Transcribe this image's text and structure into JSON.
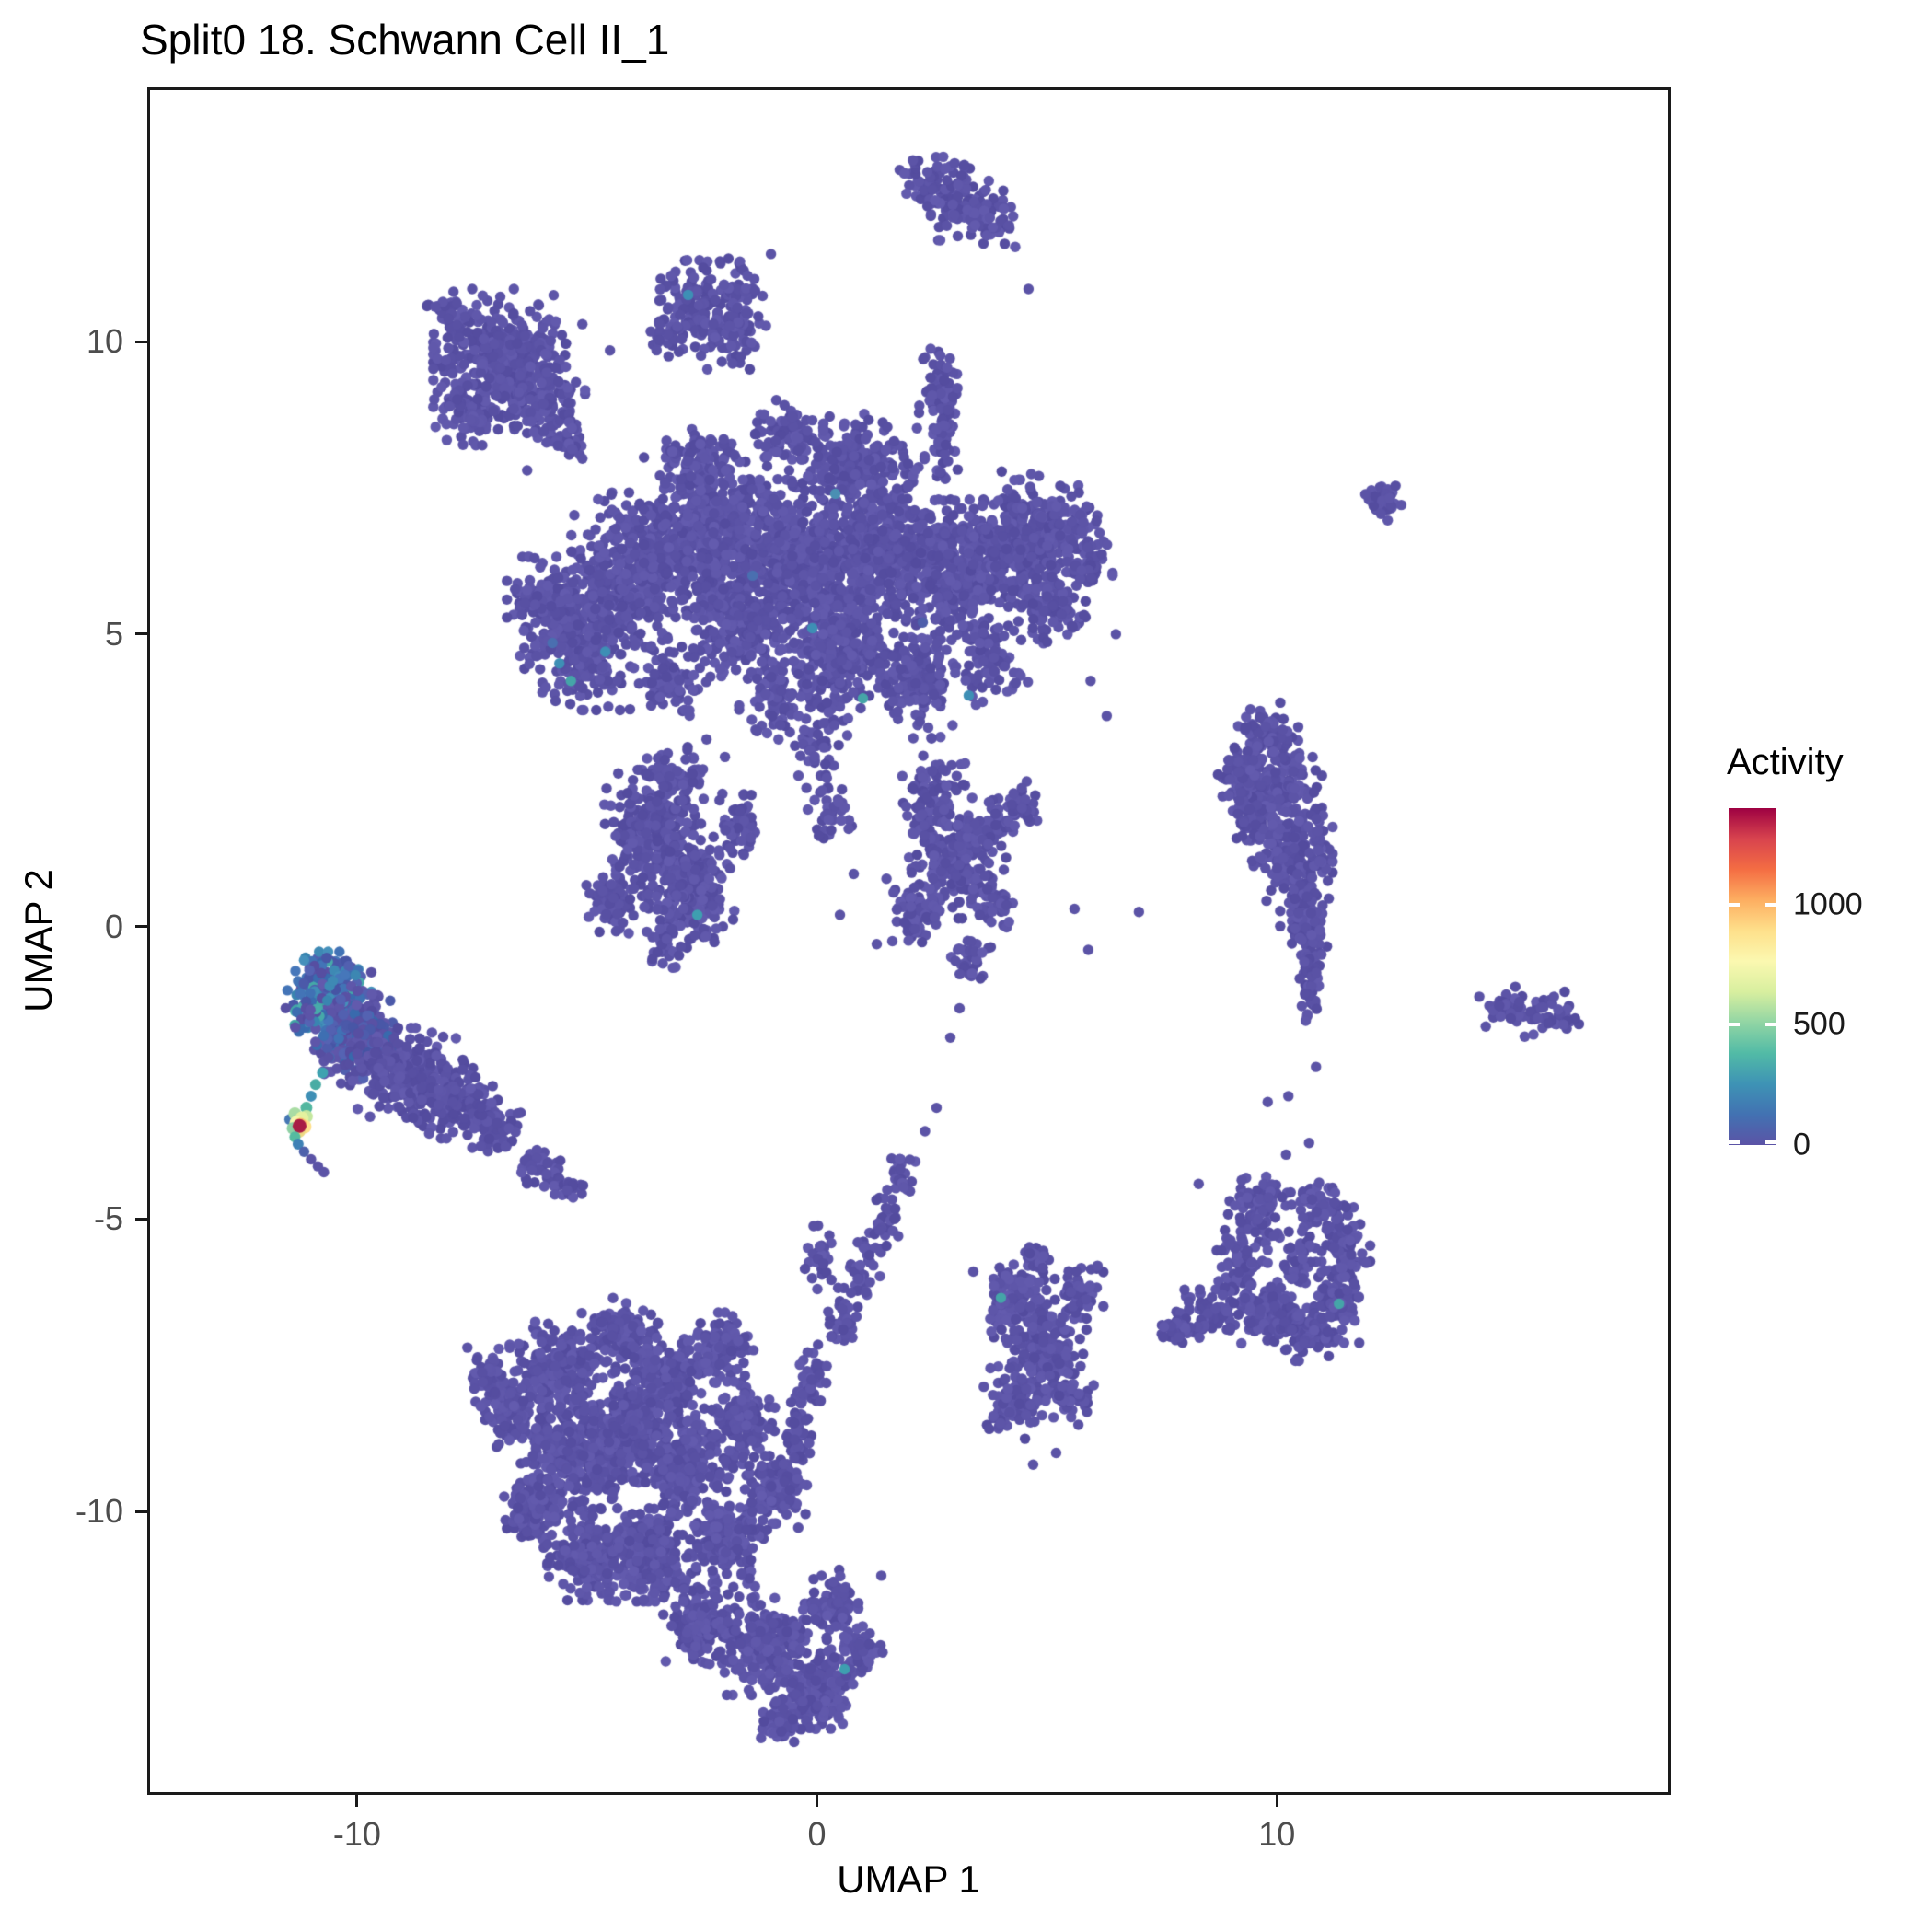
{
  "chart_data": {
    "type": "scatter",
    "title": "Split0 18. Schwann Cell II_1",
    "xlabel": "UMAP 1",
    "ylabel": "UMAP 2",
    "xlim": [
      -14.5,
      18.5
    ],
    "ylim": [
      -14.8,
      14.3
    ],
    "x_ticks": [
      -10,
      0,
      10
    ],
    "y_ticks": [
      -10,
      -5,
      0,
      5,
      10
    ],
    "colorbar": {
      "title": "Activity",
      "ticks": [
        0,
        500,
        1000
      ],
      "vmax": 1400,
      "colors": [
        "#5B53A6",
        "#4272B2",
        "#3E93B5",
        "#52BBA6",
        "#91D5A4",
        "#D8EF9F",
        "#FBF8B0",
        "#FEE08B",
        "#FDAE61",
        "#F46D43",
        "#D8434E",
        "#9E0142"
      ]
    },
    "base_point_color": "#5B53A6",
    "point_radius_px": 5.7,
    "seed": 11,
    "color_mixes": {
      "blue": [
        [
          "#4E5CAC",
          0.26
        ],
        [
          "#3E6FB2",
          0.26
        ],
        [
          "#3F8AB5",
          0.18
        ],
        [
          "#45A8A8",
          0.1
        ],
        [
          "#5B53A6",
          0.2
        ]
      ],
      "blue2": [
        [
          "#4E5CAC",
          0.3
        ],
        [
          "#3E6FB2",
          0.15
        ],
        [
          "#5B53A6",
          0.55
        ]
      ]
    },
    "clusters": [
      [
        2.5,
        12.7,
        0.3,
        0.25,
        60
      ],
      [
        3.2,
        12.35,
        0.35,
        0.28,
        80
      ],
      [
        3.8,
        12.1,
        0.22,
        0.2,
        35
      ],
      [
        -2.7,
        10.6,
        0.38,
        0.33,
        110
      ],
      [
        -1.9,
        10.2,
        0.33,
        0.28,
        85
      ],
      [
        -1.6,
        11.0,
        0.22,
        0.22,
        30
      ],
      [
        -3.3,
        10.1,
        0.22,
        0.2,
        30
      ],
      [
        -6.9,
        9.7,
        0.6,
        0.5,
        400
      ],
      [
        -6.0,
        9.0,
        0.4,
        0.33,
        130
      ],
      [
        -7.6,
        8.9,
        0.3,
        0.28,
        80
      ],
      [
        -5.4,
        8.5,
        0.2,
        0.18,
        30
      ],
      [
        -7.9,
        10.5,
        0.25,
        0.2,
        40
      ],
      [
        -5.2,
        4.9,
        0.55,
        0.5,
        330
      ],
      [
        -3.9,
        6.1,
        0.6,
        0.55,
        400
      ],
      [
        -2.2,
        6.7,
        0.65,
        0.55,
        520
      ],
      [
        -0.4,
        6.2,
        0.68,
        0.6,
        560
      ],
      [
        1.3,
        6.5,
        0.65,
        0.55,
        520
      ],
      [
        3.0,
        6.1,
        0.6,
        0.5,
        440
      ],
      [
        4.5,
        6.7,
        0.5,
        0.45,
        280
      ],
      [
        0.4,
        4.6,
        0.55,
        0.42,
        260
      ],
      [
        -1.7,
        5.2,
        0.5,
        0.4,
        240
      ],
      [
        2.2,
        4.3,
        0.45,
        0.45,
        180
      ],
      [
        0.9,
        8.0,
        0.6,
        0.32,
        200
      ],
      [
        -2.6,
        7.9,
        0.4,
        0.28,
        110
      ],
      [
        -0.7,
        8.4,
        0.35,
        0.25,
        85
      ],
      [
        2.75,
        8.45,
        0.14,
        0.33,
        55
      ],
      [
        2.7,
        9.25,
        0.2,
        0.28,
        50
      ],
      [
        -5.9,
        5.6,
        0.35,
        0.3,
        100
      ],
      [
        5.0,
        5.5,
        0.35,
        0.33,
        110
      ],
      [
        3.8,
        4.5,
        0.33,
        0.3,
        80
      ],
      [
        5.5,
        6.9,
        0.3,
        0.3,
        70
      ],
      [
        -0.9,
        3.9,
        0.33,
        0.35,
        80
      ],
      [
        0.1,
        3.3,
        0.24,
        0.3,
        45
      ],
      [
        -3.2,
        4.3,
        0.33,
        0.3,
        80
      ],
      [
        5.9,
        6.2,
        0.22,
        0.25,
        45
      ],
      [
        0.3,
        1.9,
        0.22,
        0.35,
        35
      ],
      [
        2.5,
        2.2,
        0.3,
        0.3,
        90
      ],
      [
        -3.6,
        1.6,
        0.45,
        0.45,
        280
      ],
      [
        -2.7,
        0.6,
        0.4,
        0.4,
        200
      ],
      [
        -4.4,
        0.5,
        0.27,
        0.27,
        70
      ],
      [
        -3.0,
        2.6,
        0.3,
        0.22,
        55
      ],
      [
        -1.7,
        1.7,
        0.25,
        0.25,
        50
      ],
      [
        -3.3,
        -0.3,
        0.2,
        0.2,
        30
      ],
      [
        2.9,
        1.1,
        0.38,
        0.4,
        170
      ],
      [
        2.2,
        0.2,
        0.3,
        0.3,
        80
      ],
      [
        3.6,
        1.6,
        0.25,
        0.25,
        60
      ],
      [
        3.8,
        0.4,
        0.22,
        0.25,
        45
      ],
      [
        3.3,
        -0.6,
        0.2,
        0.2,
        35
      ],
      [
        4.3,
        2.0,
        0.25,
        0.2,
        40
      ],
      [
        9.9,
        2.5,
        0.45,
        0.33,
        200
      ],
      [
        10.3,
        1.4,
        0.38,
        0.4,
        190
      ],
      [
        10.6,
        0.3,
        0.22,
        0.38,
        120
      ],
      [
        10.75,
        -0.9,
        0.12,
        0.35,
        65
      ],
      [
        9.45,
        1.9,
        0.2,
        0.28,
        60
      ],
      [
        9.8,
        3.3,
        0.3,
        0.22,
        60
      ],
      [
        9.2,
        2.6,
        0.2,
        0.2,
        40
      ],
      [
        12.35,
        7.25,
        0.18,
        0.16,
        40
      ],
      [
        15.0,
        -1.35,
        0.25,
        0.15,
        40
      ],
      [
        15.9,
        -1.5,
        0.3,
        0.16,
        45
      ],
      [
        -10.6,
        -1.15,
        0.38,
        0.3,
        250,
        "blue"
      ],
      [
        -9.9,
        -1.6,
        0.28,
        0.24,
        110,
        "blue2"
      ],
      [
        -10.35,
        -2.1,
        0.24,
        0.26,
        85,
        "blue2"
      ],
      [
        -11.1,
        -1.5,
        0.2,
        0.22,
        55,
        "blue"
      ],
      [
        -9.6,
        -2.1,
        0.26,
        0.24,
        85,
        "blue2"
      ],
      [
        -9.0,
        -2.5,
        0.48,
        0.32,
        230
      ],
      [
        -7.9,
        -2.95,
        0.4,
        0.28,
        150
      ],
      [
        -7.0,
        -3.4,
        0.3,
        0.2,
        70
      ],
      [
        -6.0,
        -4.1,
        0.22,
        0.15,
        35
      ],
      [
        -5.4,
        -4.45,
        0.16,
        0.12,
        20
      ],
      [
        1.85,
        -4.3,
        0.14,
        0.18,
        22
      ],
      [
        1.5,
        -4.9,
        0.13,
        0.2,
        22
      ],
      [
        1.2,
        -5.5,
        0.13,
        0.2,
        22
      ],
      [
        0.9,
        -6.1,
        0.15,
        0.2,
        26
      ],
      [
        0.55,
        -6.75,
        0.15,
        0.22,
        28
      ],
      [
        0.1,
        -5.6,
        0.15,
        0.25,
        30
      ],
      [
        -5.6,
        -7.6,
        0.45,
        0.35,
        230
      ],
      [
        -6.7,
        -8.3,
        0.3,
        0.27,
        110
      ],
      [
        -4.3,
        -7.0,
        0.35,
        0.27,
        140
      ],
      [
        -3.3,
        -7.75,
        0.42,
        0.35,
        230
      ],
      [
        -2.1,
        -7.2,
        0.3,
        0.25,
        110
      ],
      [
        -4.7,
        -9.0,
        0.45,
        0.4,
        280
      ],
      [
        -2.9,
        -9.2,
        0.45,
        0.4,
        280
      ],
      [
        -6.0,
        -9.9,
        0.35,
        0.3,
        140
      ],
      [
        -4.9,
        -10.8,
        0.4,
        0.3,
        190
      ],
      [
        -3.6,
        -10.7,
        0.4,
        0.35,
        230
      ],
      [
        -2.0,
        -10.5,
        0.35,
        0.35,
        190
      ],
      [
        -0.9,
        -9.6,
        0.3,
        0.3,
        140
      ],
      [
        -0.4,
        -8.6,
        0.15,
        0.27,
        55
      ],
      [
        -0.1,
        -7.75,
        0.13,
        0.25,
        45
      ],
      [
        -2.5,
        -11.9,
        0.35,
        0.3,
        170
      ],
      [
        -1.1,
        -12.3,
        0.4,
        0.35,
        240
      ],
      [
        0.0,
        -13.0,
        0.35,
        0.3,
        170
      ],
      [
        -0.7,
        -13.6,
        0.25,
        0.18,
        70
      ],
      [
        0.3,
        -11.6,
        0.25,
        0.25,
        90
      ],
      [
        0.9,
        -12.4,
        0.22,
        0.2,
        60
      ],
      [
        -7.1,
        -7.7,
        0.2,
        0.2,
        45
      ],
      [
        -1.6,
        -8.5,
        0.3,
        0.3,
        130
      ],
      [
        -3.9,
        -8.4,
        0.35,
        0.3,
        160
      ],
      [
        -5.6,
        -8.9,
        0.3,
        0.3,
        130
      ],
      [
        4.3,
        -6.4,
        0.3,
        0.3,
        120
      ],
      [
        4.9,
        -7.2,
        0.4,
        0.38,
        200
      ],
      [
        4.3,
        -8.2,
        0.28,
        0.27,
        90
      ],
      [
        5.5,
        -8.0,
        0.22,
        0.22,
        55
      ],
      [
        4.8,
        -5.7,
        0.2,
        0.16,
        30
      ],
      [
        5.7,
        -6.2,
        0.22,
        0.2,
        45
      ],
      [
        9.6,
        -4.9,
        0.3,
        0.27,
        90
      ],
      [
        9.2,
        -5.8,
        0.25,
        0.3,
        85
      ],
      [
        9.7,
        -6.6,
        0.3,
        0.22,
        95
      ],
      [
        10.6,
        -6.9,
        0.35,
        0.22,
        110
      ],
      [
        11.3,
        -6.4,
        0.25,
        0.3,
        90
      ],
      [
        11.5,
        -5.5,
        0.22,
        0.3,
        75
      ],
      [
        10.9,
        -4.8,
        0.25,
        0.22,
        60
      ],
      [
        10.5,
        -5.7,
        0.2,
        0.2,
        45
      ],
      [
        8.5,
        -6.6,
        0.3,
        0.2,
        60
      ],
      [
        7.9,
        -6.9,
        0.2,
        0.15,
        30
      ]
    ],
    "points": [
      [
        -5.1,
        10.3
      ],
      [
        -4.5,
        9.85
      ],
      [
        -1.0,
        11.5
      ],
      [
        4.6,
        10.9
      ],
      [
        -8.3,
        10.6
      ],
      [
        -6.3,
        7.8
      ],
      [
        -5.1,
        8.0
      ],
      [
        5.95,
        4.2
      ],
      [
        6.3,
        3.6
      ],
      [
        6.5,
        5.0
      ],
      [
        -2.4,
        3.2
      ],
      [
        -2.0,
        2.9
      ],
      [
        0.8,
        0.9
      ],
      [
        0.5,
        0.2
      ],
      [
        1.3,
        -0.3
      ],
      [
        5.6,
        0.3
      ],
      [
        5.9,
        -0.4
      ],
      [
        7.0,
        0.25
      ],
      [
        10.85,
        -2.4
      ],
      [
        14.4,
        -1.2
      ],
      [
        10.2,
        -3.9
      ],
      [
        10.7,
        -3.7
      ],
      [
        9.8,
        -3.0
      ],
      [
        10.25,
        -2.9
      ],
      [
        8.3,
        -4.4
      ],
      [
        4.7,
        -9.2
      ],
      [
        5.2,
        -9.0
      ],
      [
        3.4,
        -5.9
      ],
      [
        6.1,
        -5.8
      ],
      [
        2.35,
        -3.5
      ],
      [
        2.6,
        -3.1
      ],
      [
        2.9,
        -1.9
      ],
      [
        3.1,
        -1.4
      ],
      [
        1.4,
        -11.1
      ],
      [
        -7.6,
        -7.2
      ],
      [
        -2.8,
        10.8,
        "#3E8FB5"
      ],
      [
        -5.6,
        4.5,
        "#3E8FB5"
      ],
      [
        -5.35,
        4.2,
        "#45A5A8"
      ],
      [
        -5.75,
        4.85,
        "#4A6FB0"
      ],
      [
        -4.6,
        4.7,
        "#3E8FB5"
      ],
      [
        -0.1,
        5.1,
        "#3E8FB5"
      ],
      [
        1.0,
        3.9,
        "#45A5A8"
      ],
      [
        3.3,
        3.95,
        "#3E8FB5"
      ],
      [
        0.4,
        7.4,
        "#4A8FB3"
      ],
      [
        -1.4,
        6.0,
        "#4A6FB0"
      ],
      [
        2.3,
        5.2,
        "#4E5FAB"
      ],
      [
        -2.6,
        0.2,
        "#3E9FB0"
      ],
      [
        0.6,
        -12.7,
        "#3E9FB0"
      ],
      [
        4.0,
        -6.35,
        "#45A5A8"
      ],
      [
        11.35,
        -6.45,
        "#45A5A8"
      ],
      [
        -10.75,
        -2.5,
        "#3FA2B0",
        6
      ],
      [
        -10.9,
        -2.7,
        "#49ACA4",
        6
      ],
      [
        -11.0,
        -2.9,
        "#3E8FB5",
        6
      ],
      [
        -11.1,
        -3.1,
        "#52B7A0",
        6.5
      ],
      [
        -11.46,
        -3.3,
        "#4577B3",
        6
      ],
      [
        -11.35,
        -3.2,
        "#A9DCA4",
        7
      ],
      [
        -11.1,
        -3.25,
        "#C4E79E",
        7
      ],
      [
        -11.2,
        -3.28,
        "#E4F29F",
        7.5
      ],
      [
        -11.32,
        -3.36,
        "#F6F6AE",
        7.5
      ],
      [
        -11.14,
        -3.42,
        "#FEE08B",
        7.5
      ],
      [
        -11.26,
        -3.5,
        "#EDD983",
        7
      ],
      [
        -11.4,
        -3.45,
        "#8ED0A4",
        6.5
      ],
      [
        -11.23,
        -3.38,
        "#FDC06F",
        7
      ],
      [
        -11.25,
        -3.41,
        "#A81C45",
        7.5
      ],
      [
        -11.35,
        -3.6,
        "#55BBA0",
        6
      ],
      [
        -11.28,
        -3.72,
        "#3E81B5",
        6
      ],
      [
        -11.15,
        -3.85,
        "#4E61AB",
        5.7
      ],
      [
        -11.0,
        -3.98,
        "#5B53A6",
        5.7
      ],
      [
        -10.85,
        -4.1,
        "#5B53A6",
        5.7
      ],
      [
        -10.72,
        -4.2,
        "#5B53A6",
        5.7
      ]
    ]
  }
}
